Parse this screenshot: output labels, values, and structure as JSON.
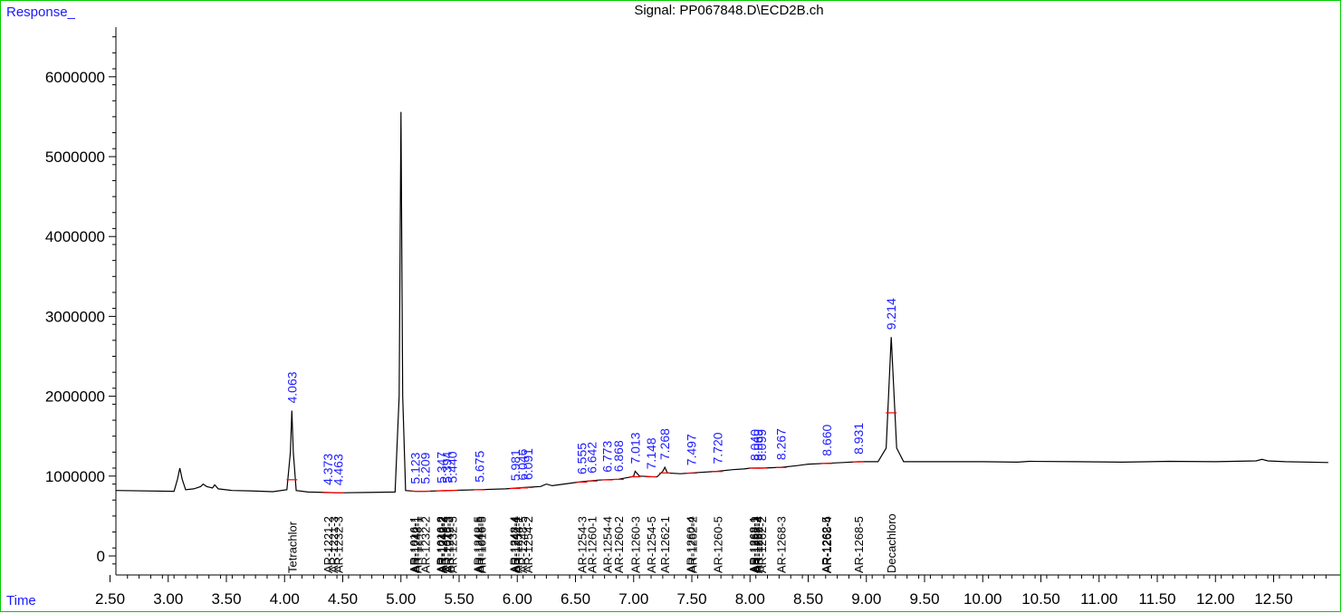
{
  "chart_data": {
    "type": "line",
    "title": "Signal: PP067848.D\\ECD2B.ch",
    "ylabel": "Response_",
    "xlabel": "Time",
    "xlim": [
      2.45,
      12.97
    ],
    "ylim": [
      -200000,
      6700000
    ],
    "x_ticks": [
      "2.50",
      "3.00",
      "3.50",
      "4.00",
      "4.50",
      "5.00",
      "5.50",
      "6.00",
      "6.50",
      "7.00",
      "7.50",
      "8.00",
      "8.50",
      "9.00",
      "9.50",
      "10.00",
      "10.50",
      "11.00",
      "11.50",
      "12.00",
      "12.50"
    ],
    "y_ticks": [
      "0",
      "1000000",
      "2000000",
      "3000000",
      "4000000",
      "5000000",
      "6000000"
    ],
    "series": [
      {
        "x": [
          2.45,
          3.05,
          3.08,
          3.1,
          3.12,
          3.15,
          3.22,
          3.28,
          3.3,
          3.33,
          3.38,
          3.4,
          3.43,
          3.55,
          3.7,
          3.9,
          4.02,
          4.05,
          4.063,
          4.075,
          4.1,
          4.2,
          4.373,
          4.463,
          4.7,
          4.95,
          4.985,
          5.0,
          5.015,
          5.04,
          5.123,
          5.209,
          5.4,
          5.675,
          5.9,
          6.0,
          6.09,
          6.2,
          6.25,
          6.3,
          6.4,
          6.5,
          6.555,
          6.7,
          6.868,
          6.98,
          7.0,
          7.013,
          7.05,
          7.2,
          7.25,
          7.268,
          7.29,
          7.4,
          7.5,
          7.72,
          7.85,
          7.95,
          8.0,
          8.1,
          8.267,
          8.4,
          8.5,
          8.66,
          8.8,
          8.931,
          9.1,
          9.17,
          9.214,
          9.26,
          9.32,
          9.6,
          10.0,
          10.3,
          10.4,
          10.8,
          11.2,
          11.6,
          12.0,
          12.35,
          12.4,
          12.45,
          12.6,
          12.97
        ],
        "y": [
          820000,
          810000,
          960000,
          1100000,
          960000,
          830000,
          840000,
          870000,
          900000,
          870000,
          850000,
          890000,
          840000,
          820000,
          815000,
          805000,
          830000,
          1300000,
          1820000,
          1300000,
          820000,
          800000,
          795000,
          790000,
          795000,
          800000,
          2000000,
          5560000,
          2000000,
          820000,
          810000,
          810000,
          820000,
          830000,
          840000,
          850000,
          860000,
          870000,
          900000,
          880000,
          900000,
          920000,
          930000,
          950000,
          960000,
          990000,
          1000000,
          1060000,
          1000000,
          990000,
          1060000,
          1110000,
          1040000,
          1030000,
          1040000,
          1060000,
          1080000,
          1090000,
          1100000,
          1100000,
          1110000,
          1130000,
          1150000,
          1160000,
          1170000,
          1180000,
          1180000,
          1350000,
          2740000,
          1350000,
          1180000,
          1180000,
          1180000,
          1175000,
          1185000,
          1180000,
          1175000,
          1185000,
          1180000,
          1190000,
          1210000,
          1190000,
          1180000,
          1170000
        ]
      }
    ],
    "peak_labels": [
      {
        "rt": 4.063,
        "text": "4.063"
      },
      {
        "rt": 4.373,
        "text": "4.373"
      },
      {
        "rt": 4.463,
        "text": "4.463"
      },
      {
        "rt": 5.123,
        "text": "5.123"
      },
      {
        "rt": 5.209,
        "text": "5.209"
      },
      {
        "rt": 5.347,
        "text": "5.347"
      },
      {
        "rt": 5.394,
        "text": "5.394"
      },
      {
        "rt": 5.44,
        "text": "5.440"
      },
      {
        "rt": 5.675,
        "text": "5.675"
      },
      {
        "rt": 5.981,
        "text": "5.981"
      },
      {
        "rt": 6.046,
        "text": "6.046"
      },
      {
        "rt": 6.091,
        "text": "6.091"
      },
      {
        "rt": 6.555,
        "text": "6.555"
      },
      {
        "rt": 6.642,
        "text": "6.642"
      },
      {
        "rt": 6.773,
        "text": "6.773"
      },
      {
        "rt": 6.868,
        "text": "6.868"
      },
      {
        "rt": 7.013,
        "text": "7.013"
      },
      {
        "rt": 7.148,
        "text": "7.148"
      },
      {
        "rt": 7.268,
        "text": "7.268"
      },
      {
        "rt": 7.497,
        "text": "7.497"
      },
      {
        "rt": 7.72,
        "text": "7.720"
      },
      {
        "rt": 8.04,
        "text": "8.040"
      },
      {
        "rt": 8.069,
        "text": "8.069"
      },
      {
        "rt": 8.099,
        "text": "8.099"
      },
      {
        "rt": 8.267,
        "text": "8.267"
      },
      {
        "rt": 8.66,
        "text": "8.660"
      },
      {
        "rt": 8.931,
        "text": "8.931"
      },
      {
        "rt": 9.214,
        "text": "9.214"
      }
    ],
    "compound_labels": [
      {
        "rt": 4.063,
        "text": "Tetrachlor"
      },
      {
        "rt": 4.373,
        "text": "AR-1221-2"
      },
      {
        "rt": 4.42,
        "text": "AR-1221-3"
      },
      {
        "rt": 4.463,
        "text": "AR-1232-3"
      },
      {
        "rt": 5.11,
        "text": "AR-1016-1"
      },
      {
        "rt": 5.123,
        "text": "AR-1242-1"
      },
      {
        "rt": 5.14,
        "text": "AR-1248-1"
      },
      {
        "rt": 5.209,
        "text": "AR-1232-2"
      },
      {
        "rt": 5.34,
        "text": "AR-1016-2"
      },
      {
        "rt": 5.347,
        "text": "AR-1242-2"
      },
      {
        "rt": 5.36,
        "text": "AR-1248-2"
      },
      {
        "rt": 5.394,
        "text": "AR-1016-3"
      },
      {
        "rt": 5.41,
        "text": "AR-1242-3"
      },
      {
        "rt": 5.44,
        "text": "AR-1232-5"
      },
      {
        "rt": 5.66,
        "text": "AR-1242-5"
      },
      {
        "rt": 5.675,
        "text": "AR-1248-5"
      },
      {
        "rt": 5.69,
        "text": "AR-1016-5"
      },
      {
        "rt": 5.97,
        "text": "AR-1248-4"
      },
      {
        "rt": 5.981,
        "text": "AR-1242-4"
      },
      {
        "rt": 6.0,
        "text": "AR-1254-1"
      },
      {
        "rt": 6.046,
        "text": "AR-1248-5"
      },
      {
        "rt": 6.091,
        "text": "AR-1254-2"
      },
      {
        "rt": 6.555,
        "text": "AR-1254-3"
      },
      {
        "rt": 6.642,
        "text": "AR-1260-1"
      },
      {
        "rt": 6.773,
        "text": "AR-1254-4"
      },
      {
        "rt": 6.868,
        "text": "AR-1260-2"
      },
      {
        "rt": 7.013,
        "text": "AR-1260-3"
      },
      {
        "rt": 7.148,
        "text": "AR-1254-5"
      },
      {
        "rt": 7.268,
        "text": "AR-1262-1"
      },
      {
        "rt": 7.49,
        "text": "AR-1260-4"
      },
      {
        "rt": 7.505,
        "text": "AR-1262-2"
      },
      {
        "rt": 7.72,
        "text": "AR-1260-5"
      },
      {
        "rt": 8.03,
        "text": "AR-1268-1"
      },
      {
        "rt": 8.04,
        "text": "AR-1262-3"
      },
      {
        "rt": 8.055,
        "text": "AR-1268-2"
      },
      {
        "rt": 8.069,
        "text": "AR-1262-4"
      },
      {
        "rt": 8.099,
        "text": "AR-1262-2"
      },
      {
        "rt": 8.267,
        "text": "AR-1268-3"
      },
      {
        "rt": 8.65,
        "text": "AR-1262-5"
      },
      {
        "rt": 8.66,
        "text": "AR-1268-4"
      },
      {
        "rt": 8.931,
        "text": "AR-1268-5"
      },
      {
        "rt": 9.214,
        "text": "Decachloro"
      }
    ],
    "colors": {
      "trace": "#000000",
      "peak_label": "#1a1aff",
      "axis_label": "#1a1aff",
      "baseline_mark": "#ff0000",
      "frame": "#00cc00"
    }
  }
}
